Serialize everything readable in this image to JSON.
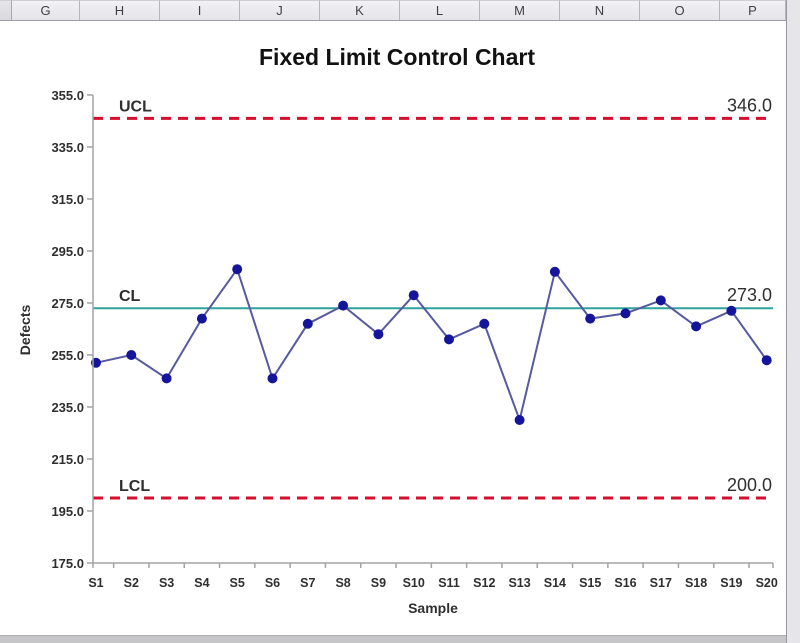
{
  "spreadsheet": {
    "column_headers": [
      "G",
      "H",
      "I",
      "J",
      "K",
      "L",
      "M",
      "N",
      "O",
      "P"
    ]
  },
  "chart_data": {
    "type": "line",
    "title": "Fixed Limit Control Chart",
    "xlabel": "Sample",
    "ylabel": "Defects",
    "categories": [
      "S1",
      "S2",
      "S3",
      "S4",
      "S5",
      "S6",
      "S7",
      "S8",
      "S9",
      "S10",
      "S11",
      "S12",
      "S13",
      "S14",
      "S15",
      "S16",
      "S17",
      "S18",
      "S19",
      "S20"
    ],
    "series": [
      {
        "name": "Defects",
        "values": [
          252,
          255,
          246,
          269,
          288,
          246,
          267,
          274,
          263,
          278,
          261,
          267,
          230,
          287,
          269,
          271,
          276,
          266,
          272,
          253
        ],
        "marker_color": "#15159b",
        "line_color": "#565a9e"
      }
    ],
    "control_limits": [
      {
        "name": "UCL",
        "label": "UCL",
        "value": 346.0,
        "display": "346.0",
        "style": "dashed",
        "color": "#d50f2d"
      },
      {
        "name": "CL",
        "label": "CL",
        "value": 273.0,
        "display": "273.0",
        "style": "solid",
        "color": "#2fa39b"
      },
      {
        "name": "LCL",
        "label": "LCL",
        "value": 200.0,
        "display": "200.0",
        "style": "dashed",
        "color": "#d50f2d"
      }
    ],
    "ylim": [
      175,
      355
    ],
    "yticks": [
      355,
      335,
      315,
      295,
      275,
      255,
      235,
      215,
      195,
      175
    ],
    "ytick_labels": [
      "355.0",
      "335.0",
      "315.0",
      "295.0",
      "275.0",
      "255.0",
      "235.0",
      "215.0",
      "195.0",
      "175.0"
    ],
    "grid": false,
    "legend": "none",
    "axis_color": "#a3a3a3",
    "text_color": "#2f2f2f"
  }
}
